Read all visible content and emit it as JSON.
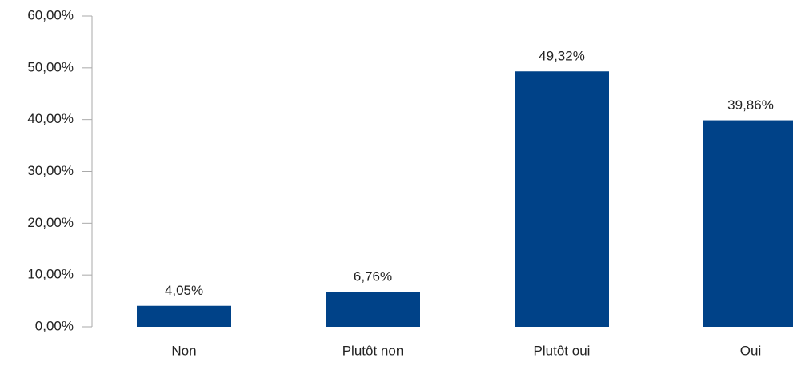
{
  "chart_data": {
    "type": "bar",
    "categories": [
      "Non",
      "Plutôt non",
      "Plutôt oui",
      "Oui"
    ],
    "values": [
      4.05,
      6.76,
      49.32,
      39.86
    ],
    "value_labels": [
      "4,05%",
      "6,76%",
      "49,32%",
      "39,86%"
    ],
    "color": "#004288",
    "ylim": [
      0,
      60
    ],
    "yticks": [
      {
        "value": 0,
        "label": "0,00%"
      },
      {
        "value": 10,
        "label": "10,00%"
      },
      {
        "value": 20,
        "label": "20,00%"
      },
      {
        "value": 30,
        "label": "30,00%"
      },
      {
        "value": 40,
        "label": "40,00%"
      },
      {
        "value": 50,
        "label": "50,00%"
      },
      {
        "value": 60,
        "label": "60,00%"
      }
    ],
    "grid": false
  }
}
